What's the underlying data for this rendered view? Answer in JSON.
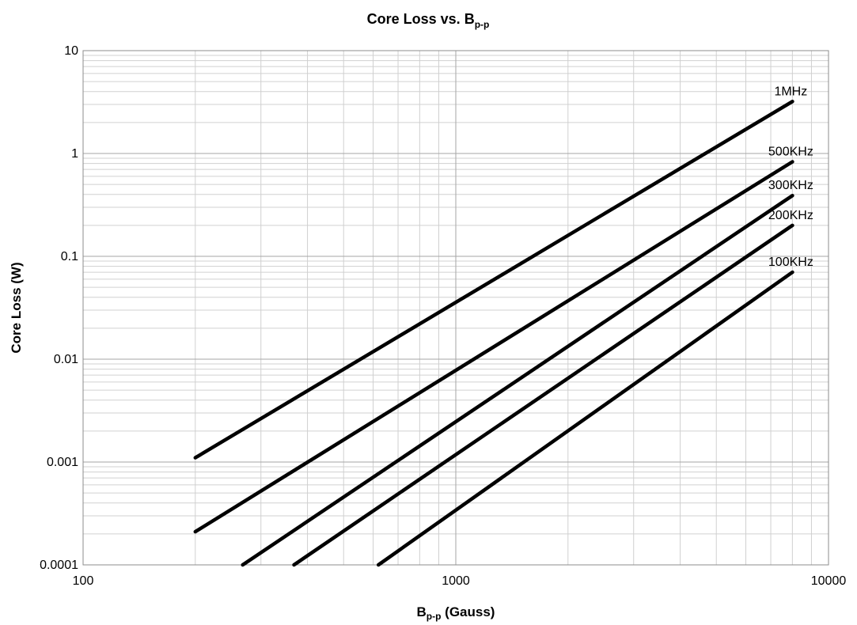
{
  "chart_data": {
    "type": "line",
    "title": "Core Loss vs. B",
    "title_subscript": "p-p",
    "xlabel": "B",
    "xlabel_subscript": "p-p",
    "xlabel_unit": " (Gauss)",
    "ylabel": "Core Loss (W)",
    "x_scale": "log",
    "y_scale": "log",
    "xlim": [
      100,
      10000
    ],
    "ylim": [
      0.0001,
      10
    ],
    "x_ticks": [
      "100",
      "1000",
      "10000"
    ],
    "y_ticks": [
      "0.0001",
      "0.001",
      "0.01",
      "0.1",
      "1",
      "10"
    ],
    "grid": true,
    "series": [
      {
        "name": "1MHz",
        "x": [
          200,
          8000
        ],
        "y": [
          0.0011,
          3.2
        ]
      },
      {
        "name": "500KHz",
        "x": [
          200,
          8000
        ],
        "y": [
          0.00021,
          0.83
        ]
      },
      {
        "name": "300KHz",
        "x": [
          268,
          8000
        ],
        "y": [
          0.0001,
          0.39
        ]
      },
      {
        "name": "200KHz",
        "x": [
          368,
          8000
        ],
        "y": [
          0.0001,
          0.2
        ]
      },
      {
        "name": "100KHz",
        "x": [
          620,
          8000
        ],
        "y": [
          0.0001,
          0.07
        ]
      }
    ],
    "colors": {
      "series": "#000000",
      "grid_major": "#a6a6a6",
      "grid_minor": "#d0d0d0"
    }
  }
}
